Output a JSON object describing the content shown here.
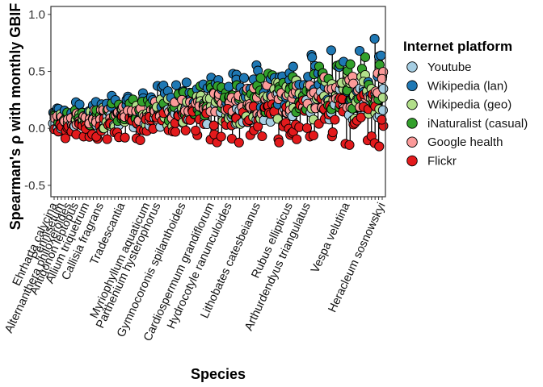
{
  "chart_data": {
    "type": "scatter",
    "ylabel": "Spearman's ρ with monthly GBIF obs",
    "xlabel": "Species",
    "ylim": [
      -0.6,
      1.07
    ],
    "yticks": [
      -0.5,
      0.0,
      0.5,
      1.0
    ],
    "ytick_labels": [
      "-0.5",
      "0.0",
      "0.5",
      "1.0"
    ],
    "grid": false,
    "legend_position": "right",
    "legend_title": "Internet platform",
    "series": [
      {
        "name": "Youtube",
        "color": "#a6cee3"
      },
      {
        "name": "Wikipedia (lan)",
        "color": "#1f78b4"
      },
      {
        "name": "Wikipedia (geo)",
        "color": "#b2df8a"
      },
      {
        "name": "iNaturalist (casual)",
        "color": "#33a02c"
      },
      {
        "name": "Google health",
        "color": "#fb9a99"
      },
      {
        "name": "Flickr",
        "color": "#e31a1c"
      }
    ],
    "species_count": 93,
    "species_labels": [
      "Ehrharta calycina",
      "Pennisetum",
      "Alternanthera philoxeroides",
      "Antigonon leptopus",
      "Allium triquetrum",
      "Callisia fragrans",
      "Tradescantia",
      "Myriophyllum aquaticum",
      "Parthenium hysterophorus",
      "Gymnocoronis spilanthoides",
      "Cardiospermum grandiflorum",
      "Hydrocotyle ranunculoides",
      "Lithobates catesbeianus",
      "Rubus ellipticus",
      "Arthurdendyus triangulatus",
      "Vespa velutina",
      "Heracleum sosnowskyi"
    ],
    "species_label_positions": [
      0,
      2,
      4,
      6,
      9,
      13,
      19,
      26,
      29,
      36,
      44,
      49,
      57,
      66,
      71,
      82,
      92
    ]
  }
}
